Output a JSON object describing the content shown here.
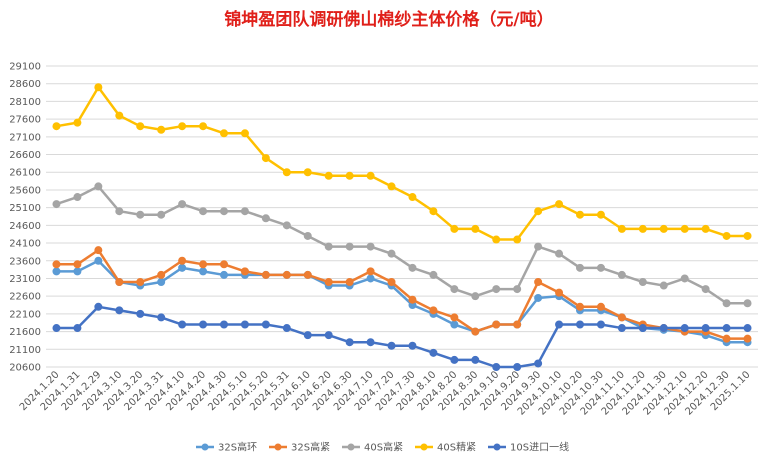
{
  "chart_data": {
    "type": "line",
    "title": "锦坤盈团队调研佛山棉纱主体价格（元/吨）",
    "xlabel": "",
    "ylabel": "",
    "ylim": [
      20600,
      29100
    ],
    "yticks": [
      20600,
      21100,
      21600,
      22100,
      22600,
      23100,
      23600,
      24100,
      24600,
      25100,
      25600,
      26100,
      26600,
      27100,
      27600,
      28100,
      28600,
      29100
    ],
    "grid": true,
    "legend_position": "bottom",
    "categories": [
      "2024.1.20",
      "2024.1.31",
      "2024.2.29",
      "2024.3.10",
      "2024.3.20",
      "2024.3.31",
      "2024.4.10",
      "2024.4.20",
      "2024.4.30",
      "2024.5.10",
      "2024.5.20",
      "2024.5.31",
      "2024.6.10",
      "2024.6.20",
      "2024.6.30",
      "2024.7.10",
      "2024.7.20",
      "2024.7.30",
      "2024.8.10",
      "2024.8.20",
      "2024.8.30",
      "2024.9.10",
      "2024.9.20",
      "2024.9.30",
      "2024.10.10",
      "2024.10.20",
      "2024.10.30",
      "2024.11.10",
      "2024.11.20",
      "2024.11.30",
      "2024.12.10",
      "2024.12.20",
      "2024.12.30",
      "2025.1.10"
    ],
    "series": [
      {
        "name": "32S高环",
        "color": "#5b9bd5",
        "values": [
          23300,
          23300,
          23600,
          23000,
          22900,
          23000,
          23400,
          23300,
          23200,
          23200,
          23200,
          23200,
          23200,
          22900,
          22900,
          23100,
          22900,
          22350,
          22100,
          21800,
          21600,
          21800,
          21800,
          22550,
          22600,
          22200,
          22200,
          22000,
          21700,
          21650,
          21600,
          21500,
          21300,
          21300
        ]
      },
      {
        "name": "32S高紧",
        "color": "#ed7d31",
        "values": [
          23500,
          23500,
          23900,
          23000,
          23000,
          23200,
          23600,
          23500,
          23500,
          23300,
          23200,
          23200,
          23200,
          23000,
          23000,
          23300,
          23000,
          22500,
          22200,
          22000,
          21600,
          21800,
          21800,
          23000,
          22700,
          22300,
          22300,
          22000,
          21800,
          21700,
          21600,
          21600,
          21400,
          21400
        ]
      },
      {
        "name": "40S高紧",
        "color": "#a5a5a5",
        "values": [
          25200,
          25400,
          25700,
          25000,
          24900,
          24900,
          25200,
          25000,
          25000,
          25000,
          24800,
          24600,
          24300,
          24000,
          24000,
          24000,
          23800,
          23400,
          23200,
          22800,
          22600,
          22800,
          22800,
          24000,
          23800,
          23400,
          23400,
          23200,
          23000,
          22900,
          23100,
          22800,
          22400,
          22400
        ]
      },
      {
        "name": "40S精紧",
        "color": "#ffc000",
        "values": [
          27400,
          27500,
          28500,
          27700,
          27400,
          27300,
          27400,
          27400,
          27200,
          27200,
          26500,
          26100,
          26100,
          26000,
          26000,
          26000,
          25700,
          25400,
          25000,
          24500,
          24500,
          24200,
          24200,
          25000,
          25200,
          24900,
          24900,
          24500,
          24500,
          24500,
          24500,
          24500,
          24300,
          24300
        ]
      },
      {
        "name": "10S进口一线",
        "color": "#4472c4",
        "values": [
          21700,
          21700,
          22300,
          22200,
          22100,
          22000,
          21800,
          21800,
          21800,
          21800,
          21800,
          21700,
          21500,
          21500,
          21300,
          21300,
          21200,
          21200,
          21000,
          20800,
          20800,
          20600,
          20600,
          20700,
          21800,
          21800,
          21800,
          21700,
          21700,
          21700,
          21700,
          21700,
          21700,
          21700
        ]
      }
    ]
  }
}
